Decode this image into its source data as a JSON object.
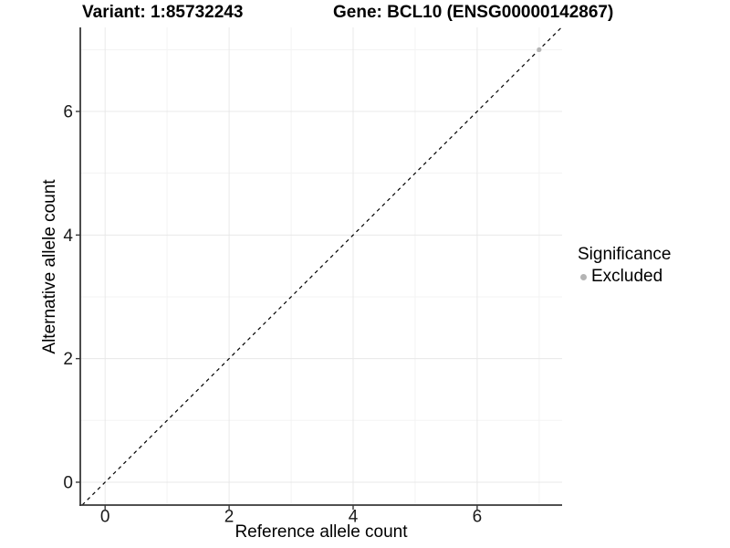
{
  "figure": {
    "background": "#ffffff"
  },
  "chart_data": {
    "type": "scatter",
    "title_left": "Variant: 1:85732243",
    "title_right": "Gene: BCL10 (ENSG00000142867)",
    "xlabel": "Reference allele count",
    "ylabel": "Alternative allele count",
    "xlim": [
      -0.4,
      7.37
    ],
    "ylim": [
      -0.37,
      7.36
    ],
    "x_major_ticks": [
      0,
      2,
      4,
      6
    ],
    "y_major_ticks": [
      0,
      2,
      4,
      6
    ],
    "x_minor_gridlines": [
      1,
      3,
      5,
      7
    ],
    "y_minor_gridlines": [
      1,
      3,
      5,
      7
    ],
    "grid": true,
    "identity_line": {
      "style": "dashed",
      "from": -0.37,
      "to": 7.36,
      "color": "#000000"
    },
    "series": [
      {
        "name": "Excluded",
        "color": "#b4b4b4",
        "points": [
          [
            7,
            7
          ]
        ]
      }
    ],
    "legend": {
      "title": "Significance",
      "position": "right",
      "entries": [
        {
          "label": "Excluded",
          "color": "#b4b4b4"
        }
      ]
    },
    "colors": {
      "major_grid": "#e8e8e8",
      "minor_grid": "#f3f3f3",
      "axis_line": "#383838",
      "tick_text": "#1a1a1a",
      "title_text": "#000000"
    }
  }
}
